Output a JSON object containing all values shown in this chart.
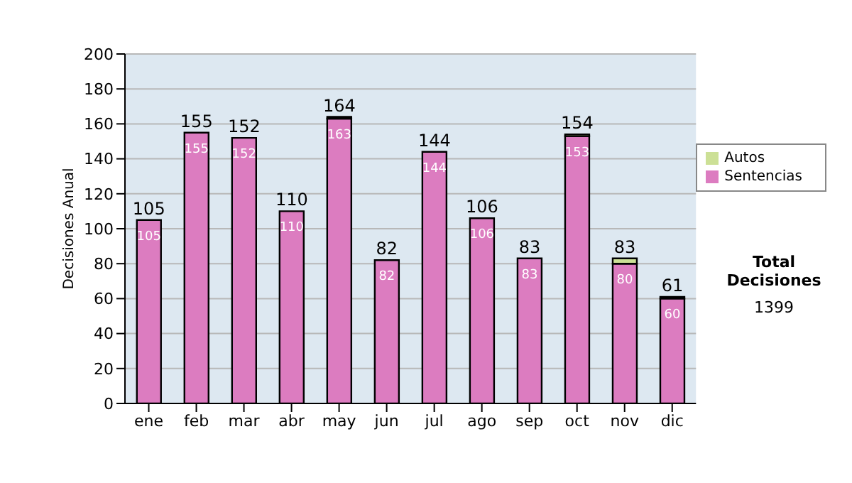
{
  "chart_data": {
    "type": "bar",
    "ylabel": "Decisiones Anual",
    "categories": [
      "ene",
      "feb",
      "mar",
      "abr",
      "may",
      "jun",
      "jul",
      "ago",
      "sep",
      "oct",
      "nov",
      "dic"
    ],
    "stacked": true,
    "series": [
      {
        "name": "Sentencias",
        "color": "#dc7cc0",
        "values": [
          105,
          155,
          152,
          110,
          163,
          82,
          144,
          106,
          83,
          153,
          80,
          60
        ],
        "value_labels": [
          "105",
          "155",
          "152",
          "110",
          "163",
          "82",
          "144",
          "106",
          "83",
          "153",
          "80",
          "60"
        ]
      },
      {
        "name": "Autos",
        "color": "#cce096",
        "values": [
          0,
          0,
          0,
          0,
          1,
          0,
          0,
          0,
          0,
          1,
          3,
          1
        ]
      }
    ],
    "totals": [
      "105",
      "155",
      "152",
      "110",
      "164",
      "82",
      "144",
      "106",
      "83",
      "154",
      "83",
      "61"
    ],
    "ylim": [
      0,
      200
    ],
    "yticks": [
      0,
      20,
      40,
      60,
      80,
      100,
      120,
      140,
      160,
      180,
      200
    ],
    "grid": "y",
    "legend": "right",
    "annotations": [
      "Total Decisiones",
      "1399"
    ]
  }
}
